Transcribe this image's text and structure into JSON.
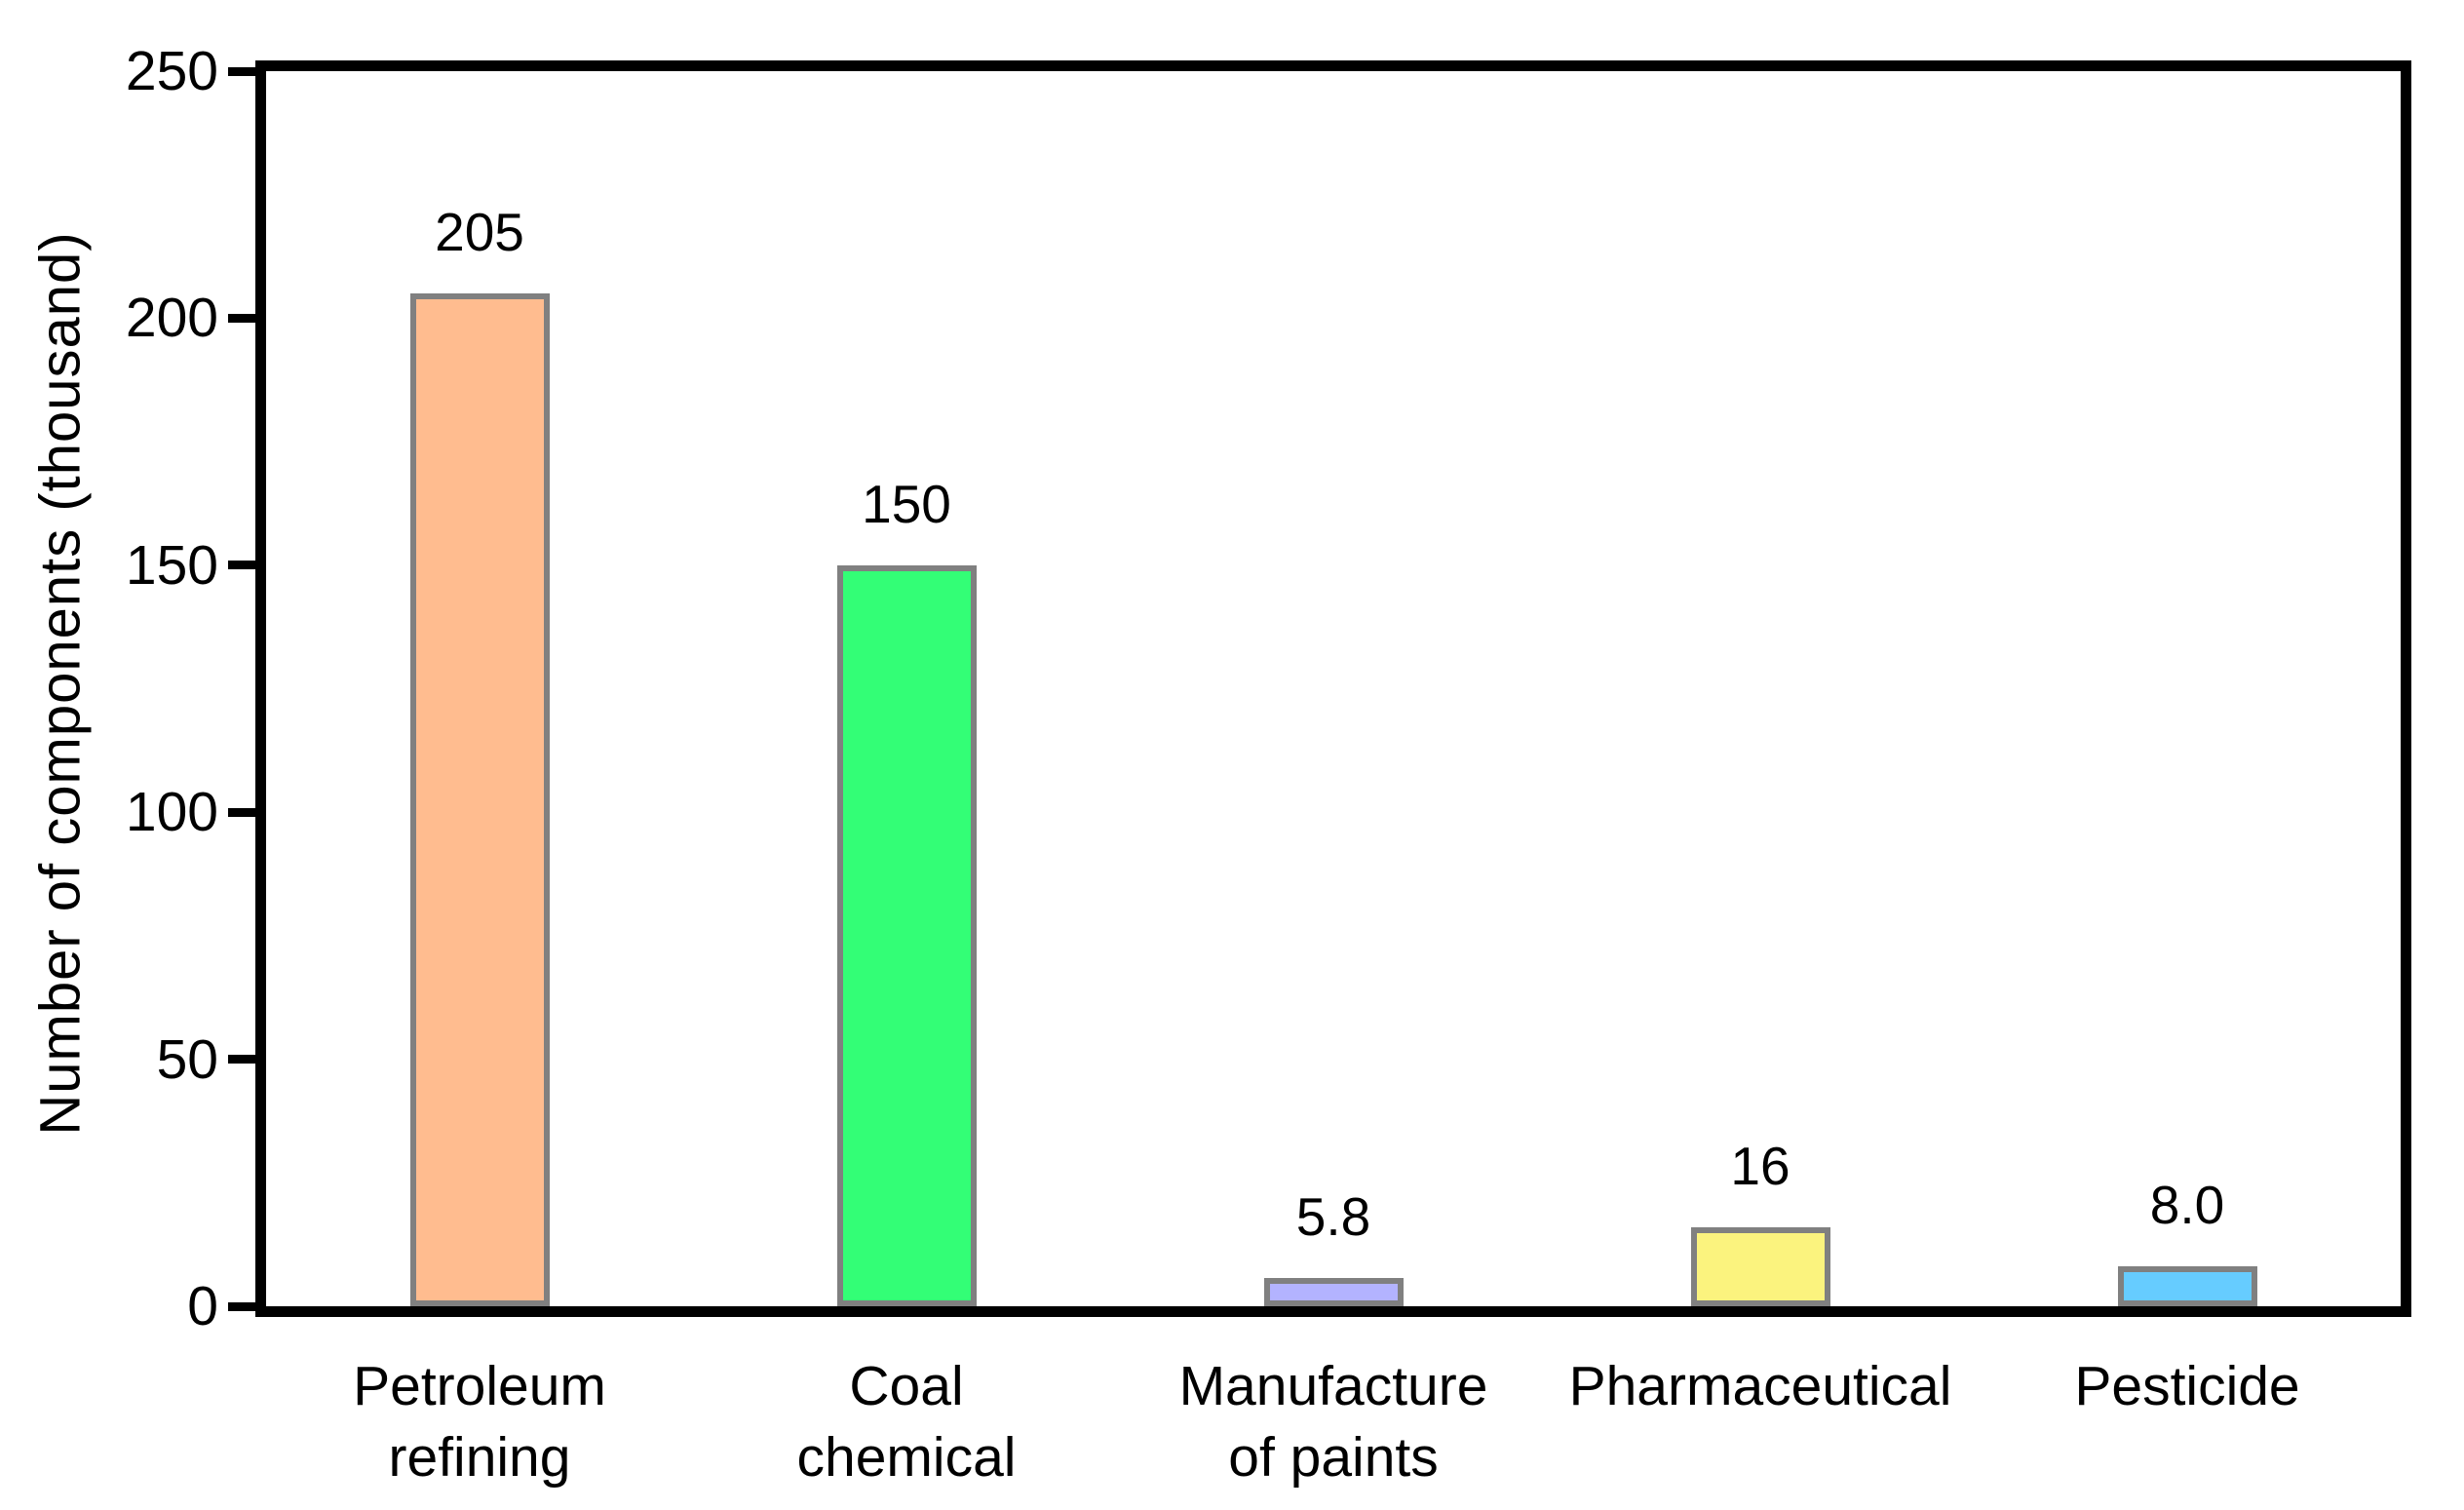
{
  "figure": {
    "background": "#ffffff"
  },
  "chart_data": {
    "type": "bar",
    "title": "",
    "xlabel": "",
    "ylabel": "Number of components (thousand)",
    "ylim": [
      0,
      250
    ],
    "yticks": [
      0,
      50,
      100,
      150,
      200,
      250
    ],
    "grid": false,
    "legend": "none",
    "categories": [
      "Petroleum\nrefining",
      "Coal\nchemical",
      "Manufacture\nof paints",
      "Pharmaceutical",
      "Pesticide"
    ],
    "values": [
      205,
      150,
      5.8,
      16,
      8.0
    ],
    "value_labels": [
      "205",
      "150",
      "5.8",
      "16",
      "8.0"
    ],
    "bar_colors": [
      "#ffbc8f",
      "#33fe76",
      "#b3b3ff",
      "#fbf37e",
      "#66ccff"
    ],
    "bar_edge_color": "#808080",
    "axis_frame_color": "#000000",
    "tick_color": "#000000",
    "text_color": "#000000"
  }
}
